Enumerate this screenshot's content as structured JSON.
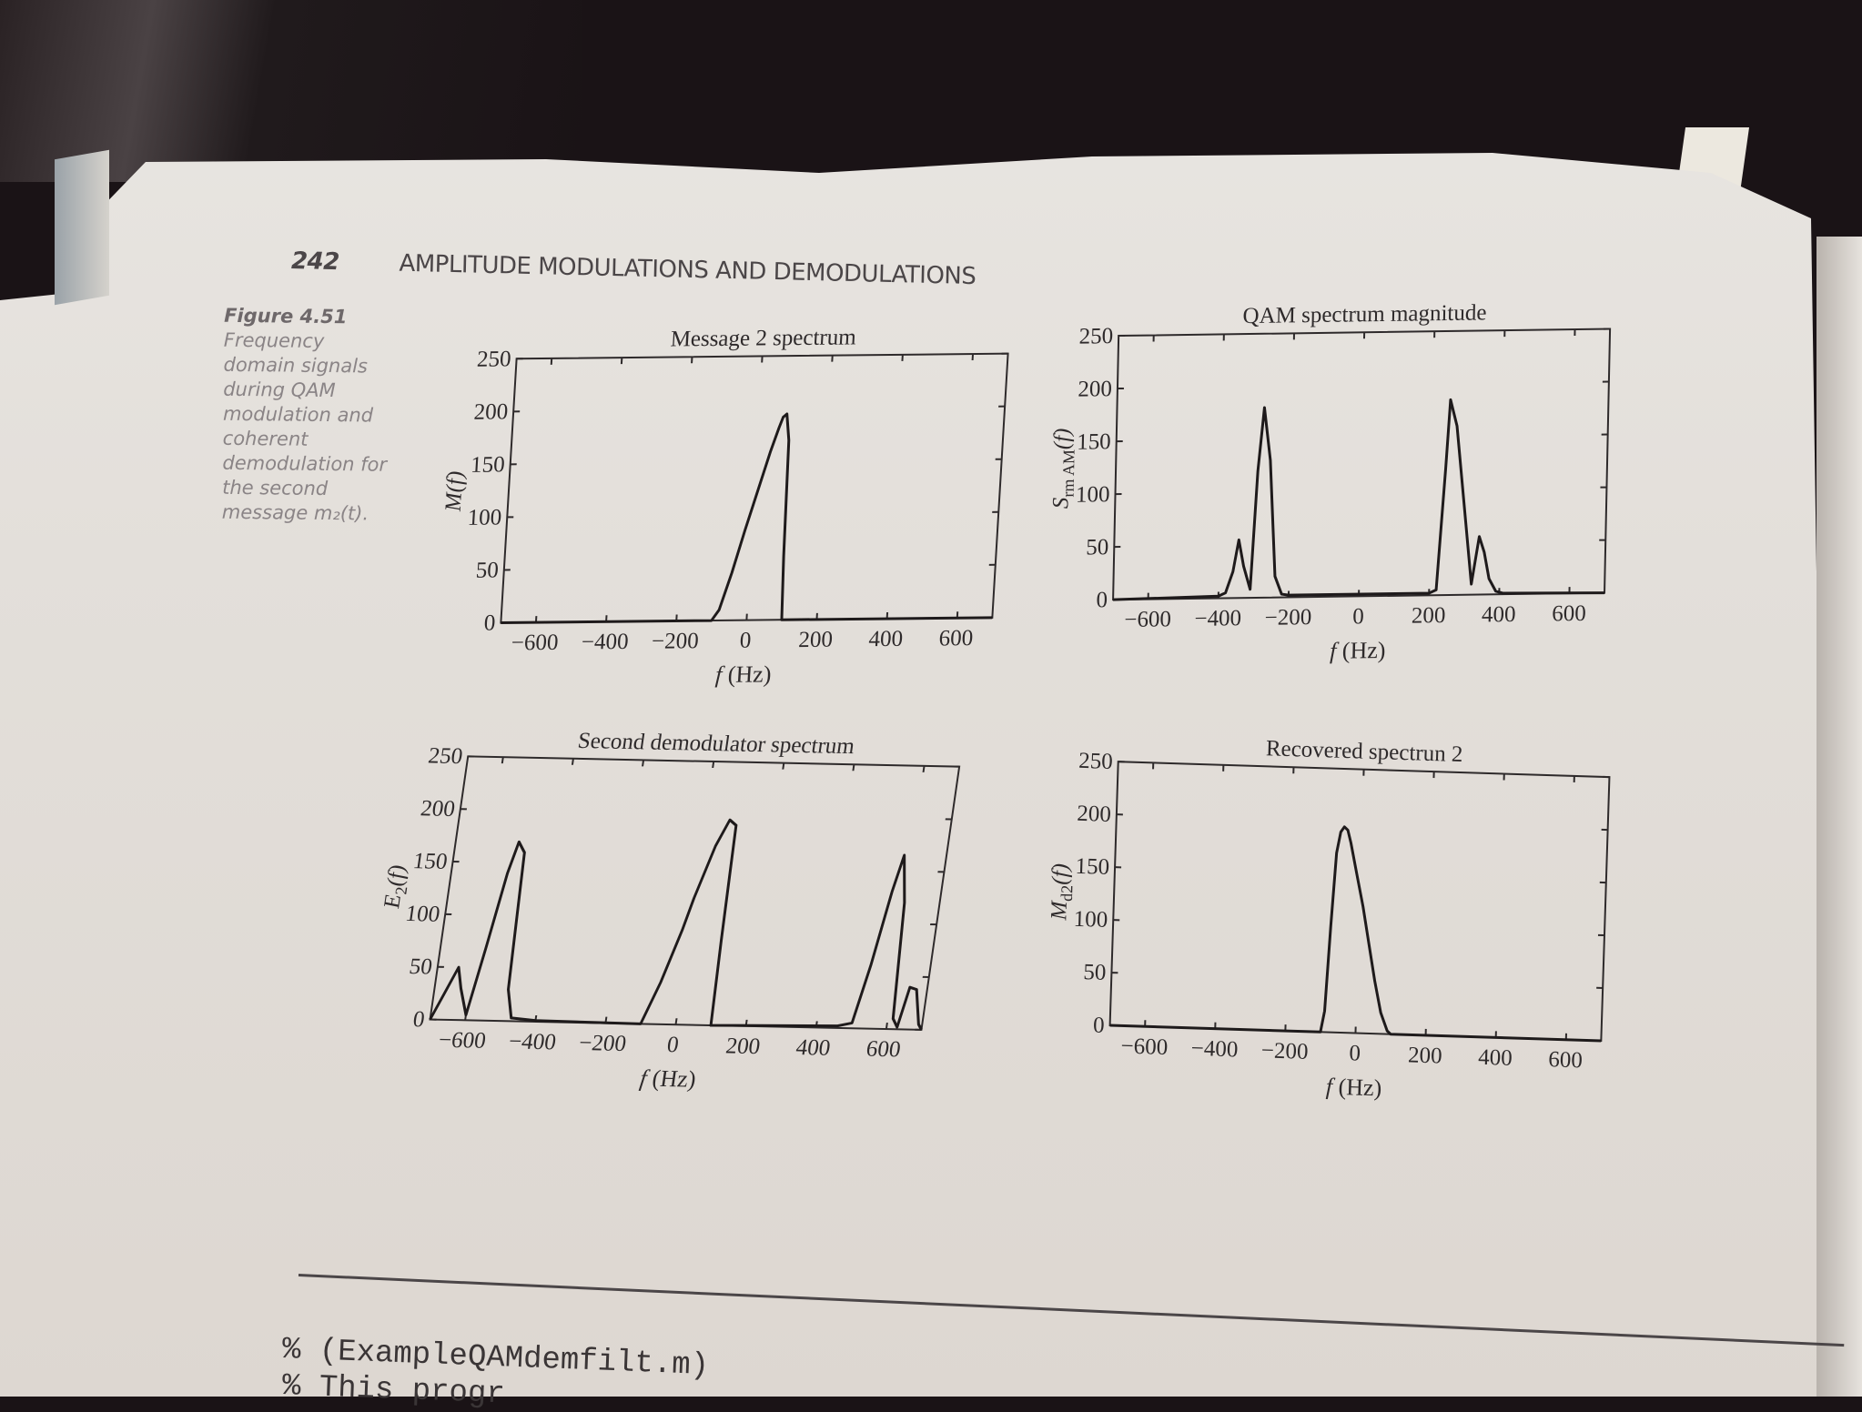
{
  "page": {
    "number": "242",
    "running_head": "AMPLITUDE MODULATIONS AND DEMODULATIONS"
  },
  "caption": {
    "figure_label": "Figure 4.51",
    "lines": [
      "Frequency",
      "domain signals",
      "during QAM",
      "modulation and",
      "coherent",
      "demodulation for",
      "the second",
      "message m₂(t)."
    ]
  },
  "code": {
    "line1": "% (ExampleQAMdemfilt.m)",
    "line2": "% This progr"
  },
  "chart_data": [
    {
      "type": "line",
      "id": "message2",
      "title": "Message 2 spectrum",
      "xlabel": "f (Hz)",
      "ylabel": "M(f)",
      "xlim": [
        -700,
        700
      ],
      "ylim": [
        0,
        250
      ],
      "xticks": [
        -600,
        -400,
        -200,
        0,
        200,
        400,
        600
      ],
      "yticks": [
        0,
        50,
        100,
        150,
        200,
        250
      ],
      "grid": false,
      "x": [
        -700,
        -100,
        -80,
        -50,
        -20,
        0,
        20,
        40,
        60,
        70,
        80,
        90,
        95,
        100,
        700
      ],
      "values": [
        0,
        0,
        10,
        45,
        85,
        110,
        135,
        160,
        182,
        192,
        195,
        170,
        60,
        0,
        0
      ]
    },
    {
      "type": "line",
      "id": "qam_spectrum",
      "title": "QAM spectrum magnitude",
      "xlabel": "f (Hz)",
      "ylabel": "S_rm AM(f)",
      "xlim": [
        -700,
        700
      ],
      "ylim": [
        0,
        250
      ],
      "xticks": [
        -600,
        -400,
        -200,
        0,
        200,
        400,
        600
      ],
      "yticks": [
        0,
        50,
        100,
        150,
        200,
        250
      ],
      "grid": false,
      "x": [
        -700,
        -400,
        -380,
        -360,
        -345,
        -330,
        -310,
        -295,
        -280,
        -260,
        -240,
        -220,
        -200,
        200,
        220,
        240,
        250,
        270,
        300,
        320,
        340,
        355,
        370,
        390,
        410,
        700
      ],
      "values": [
        0,
        2,
        5,
        25,
        55,
        30,
        8,
        120,
        180,
        130,
        20,
        3,
        2,
        2,
        5,
        120,
        185,
        160,
        70,
        10,
        55,
        40,
        15,
        3,
        1,
        0
      ]
    },
    {
      "type": "line",
      "id": "second_demod",
      "title": "Second demodulator spectrum",
      "xlabel": "f (Hz)",
      "ylabel": "E2(f)",
      "xlim": [
        -700,
        700
      ],
      "ylim": [
        0,
        250
      ],
      "xticks": [
        -600,
        -400,
        -200,
        0,
        200,
        400,
        600
      ],
      "yticks": [
        0,
        50,
        100,
        150,
        200,
        250
      ],
      "grid": false,
      "x": [
        -700,
        -670,
        -640,
        -625,
        -600,
        -570,
        -540,
        -520,
        -500,
        -490,
        -470,
        -400,
        -100,
        -60,
        -20,
        0,
        40,
        70,
        90,
        95,
        100,
        460,
        500,
        530,
        560,
        580,
        600,
        615,
        630,
        650,
        670,
        690,
        700
      ],
      "values": [
        0,
        25,
        50,
        30,
        5,
        70,
        140,
        170,
        160,
        30,
        3,
        1,
        0,
        40,
        90,
        120,
        170,
        195,
        190,
        80,
        0,
        2,
        5,
        60,
        130,
        165,
        120,
        10,
        2,
        40,
        38,
        5,
        0
      ]
    },
    {
      "type": "line",
      "id": "recovered2",
      "title": "Recovered spectrun 2",
      "xlabel": "f (Hz)",
      "ylabel": "M_d2(f)",
      "xlim": [
        -700,
        700
      ],
      "ylim": [
        0,
        250
      ],
      "xticks": [
        -600,
        -400,
        -200,
        0,
        200,
        400,
        600
      ],
      "yticks": [
        0,
        50,
        100,
        150,
        200,
        250
      ],
      "grid": false,
      "x": [
        -700,
        -100,
        -90,
        -80,
        -70,
        -60,
        -50,
        -40,
        -30,
        -10,
        10,
        30,
        50,
        70,
        90,
        100,
        700
      ],
      "values": [
        0,
        0,
        20,
        100,
        170,
        190,
        195,
        192,
        180,
        150,
        120,
        85,
        50,
        20,
        3,
        0,
        0
      ]
    }
  ]
}
